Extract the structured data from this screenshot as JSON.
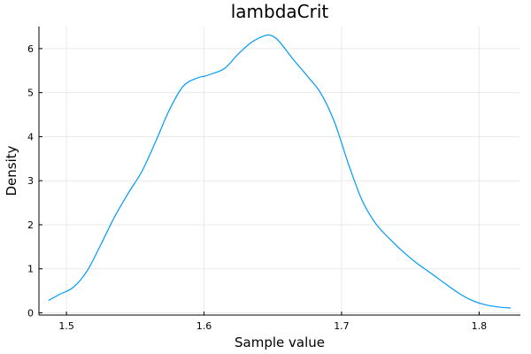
{
  "chart_data": {
    "type": "line",
    "title": "lambdaCrit",
    "xlabel": "Sample value",
    "ylabel": "Density",
    "xlim": [
      1.48,
      1.83
    ],
    "ylim": [
      -0.05,
      6.5
    ],
    "x_ticks": [
      1.5,
      1.6,
      1.7,
      1.8
    ],
    "x_tick_labels": [
      "1.5",
      "1.6",
      "1.7",
      "1.8"
    ],
    "y_ticks": [
      0,
      1,
      2,
      3,
      4,
      5,
      6
    ],
    "y_tick_labels": [
      "0",
      "1",
      "2",
      "3",
      "4",
      "5",
      "6"
    ],
    "grid": true,
    "legend": "none",
    "series": [
      {
        "color": "#009af9",
        "x": [
          1.487,
          1.495,
          1.505,
          1.515,
          1.525,
          1.535,
          1.545,
          1.555,
          1.565,
          1.575,
          1.585,
          1.595,
          1.6,
          1.605,
          1.615,
          1.625,
          1.635,
          1.645,
          1.65,
          1.655,
          1.665,
          1.675,
          1.685,
          1.695,
          1.705,
          1.715,
          1.725,
          1.735,
          1.745,
          1.755,
          1.765,
          1.775,
          1.785,
          1.795,
          1.805,
          1.815,
          1.823
        ],
        "y": [
          0.28,
          0.42,
          0.58,
          0.95,
          1.55,
          2.18,
          2.72,
          3.22,
          3.9,
          4.62,
          5.15,
          5.33,
          5.37,
          5.42,
          5.55,
          5.88,
          6.15,
          6.3,
          6.28,
          6.15,
          5.75,
          5.38,
          4.98,
          4.32,
          3.38,
          2.55,
          2.02,
          1.68,
          1.38,
          1.12,
          0.9,
          0.67,
          0.45,
          0.28,
          0.18,
          0.13,
          0.11
        ]
      }
    ]
  }
}
